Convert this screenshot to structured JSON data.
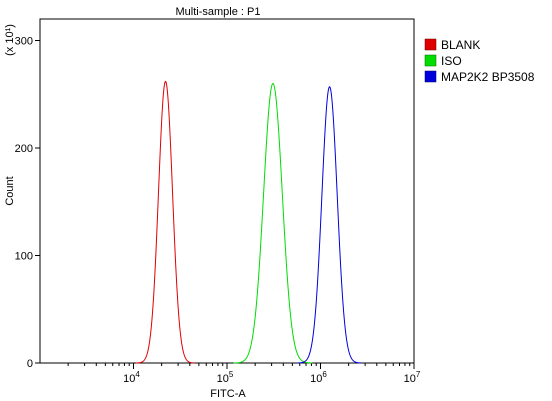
{
  "chart_data": {
    "type": "histogram",
    "title": "Multi-sample : P1",
    "xlabel": "FITC-A",
    "ylabel": "Count",
    "y_multiplier": "(x 10¹)",
    "x_scale": "log",
    "xlim": [
      1000,
      10000000
    ],
    "ylim": [
      0,
      320
    ],
    "x_ticks": [
      {
        "value": 10000,
        "base": "10",
        "exp": "4"
      },
      {
        "value": 100000,
        "base": "10",
        "exp": "5"
      },
      {
        "value": 1000000,
        "base": "10",
        "exp": "6"
      },
      {
        "value": 10000000,
        "base": "10",
        "exp": "7"
      }
    ],
    "y_ticks": [
      0,
      100,
      200,
      300
    ],
    "legend_position": "right",
    "grid": false,
    "series": [
      {
        "name": "BLANK",
        "color": "#e00000",
        "peak_x": 22000,
        "peak_y": 262,
        "sigma_log": 0.075,
        "x": [
          12000,
          15000,
          18000,
          20000,
          22000,
          25000,
          29000,
          34000,
          40000
        ],
        "y": [
          5,
          50,
          180,
          240,
          262,
          240,
          170,
          50,
          3
        ]
      },
      {
        "name": "ISO",
        "color": "#00dd00",
        "peak_x": 310000,
        "peak_y": 260,
        "sigma_log": 0.1,
        "x": [
          130000,
          180000,
          240000,
          290000,
          310000,
          360000,
          450000,
          560000,
          700000
        ],
        "y": [
          5,
          60,
          210,
          255,
          260,
          235,
          150,
          60,
          10
        ]
      },
      {
        "name": "MAP2K2 BP3508",
        "color": "#0000dd",
        "peak_x": 1250000,
        "peak_y": 257,
        "sigma_log": 0.082,
        "x": [
          600000,
          800000,
          1000000,
          1150000,
          1250000,
          1400000,
          1700000,
          2100000,
          2700000
        ],
        "y": [
          3,
          30,
          150,
          240,
          257,
          235,
          140,
          40,
          3
        ]
      }
    ]
  }
}
